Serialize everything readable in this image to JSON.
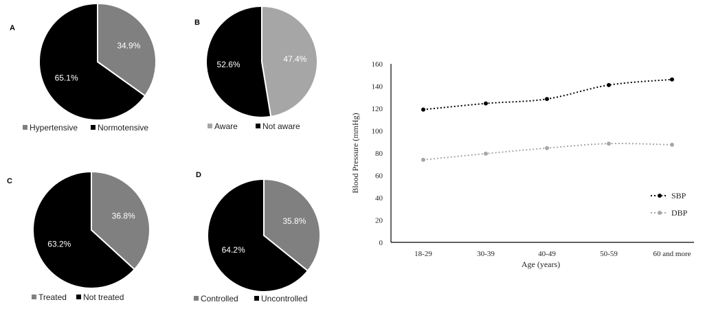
{
  "chart_data": [
    {
      "type": "pie",
      "panel": "A",
      "slices": [
        {
          "label": "Hypertensive",
          "value": 34.9,
          "display": "34.9%",
          "color": "#808080"
        },
        {
          "label": "Normotensive",
          "value": 65.1,
          "display": "65.1%",
          "color": "#000000"
        }
      ],
      "legend_placement": "bottom"
    },
    {
      "type": "pie",
      "panel": "B",
      "slices": [
        {
          "label": "Aware",
          "value": 47.4,
          "display": "47.4%",
          "color": "#a6a6a6"
        },
        {
          "label": "Not aware",
          "value": 52.6,
          "display": "52.6%",
          "color": "#000000"
        }
      ],
      "legend_placement": "bottom"
    },
    {
      "type": "pie",
      "panel": "C",
      "slices": [
        {
          "label": "Treated",
          "value": 36.8,
          "display": "36.8%",
          "color": "#808080"
        },
        {
          "label": "Not treated",
          "value": 63.2,
          "display": "63.2%",
          "color": "#000000"
        }
      ],
      "legend_placement": "bottom"
    },
    {
      "type": "pie",
      "panel": "D",
      "slices": [
        {
          "label": "Controlled",
          "value": 35.8,
          "display": "35.8%",
          "color": "#808080"
        },
        {
          "label": "Uncontrolled",
          "value": 64.2,
          "display": "64.2%",
          "color": "#000000"
        }
      ],
      "legend_placement": "bottom"
    },
    {
      "type": "line",
      "categories": [
        "18-29",
        "30-39",
        "40-49",
        "50-59",
        "60 and more"
      ],
      "series": [
        {
          "name": "SBP",
          "values": [
            119,
            124.5,
            128.5,
            141,
            146
          ],
          "color": "#000000"
        },
        {
          "name": "DBP",
          "values": [
            74,
            79.5,
            84.5,
            88.5,
            87.5
          ],
          "color": "#a6a6a6"
        }
      ],
      "xlabel": "Age (years)",
      "ylabel": "Blood Pressure (mmHg)",
      "ylim": [
        0,
        160
      ],
      "yticks": [
        0,
        20,
        40,
        60,
        80,
        100,
        120,
        140,
        160
      ],
      "grid": false,
      "legend_placement": "bottom-right"
    }
  ]
}
